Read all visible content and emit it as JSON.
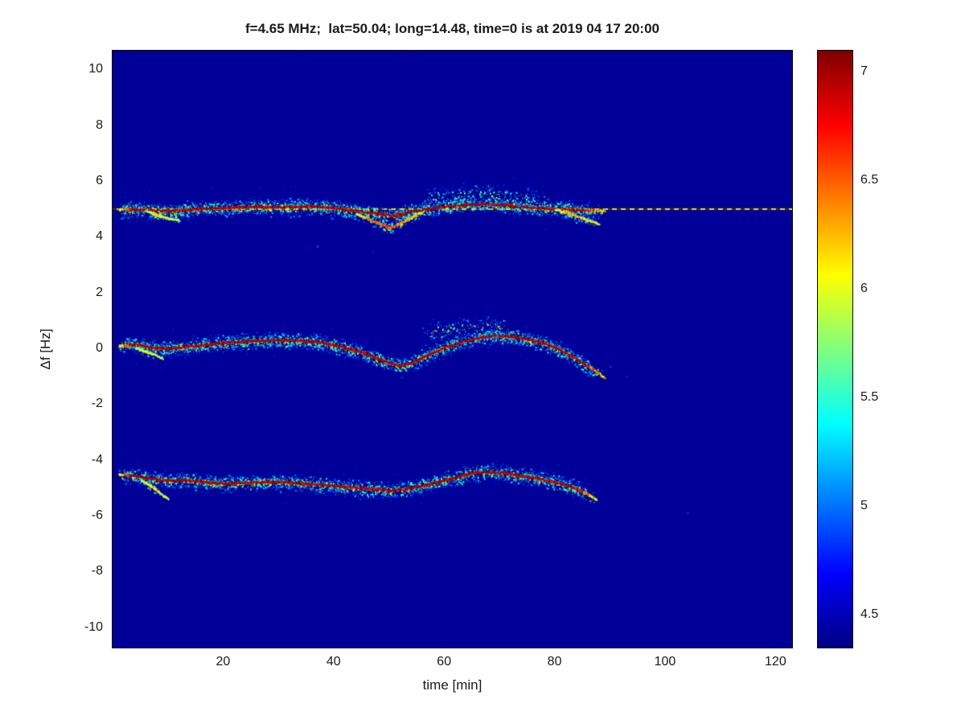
{
  "title": "f=4.65 MHz;  lat=50.04; long=14.48, time=0 is at 2019 04 17 20:00",
  "colors": {
    "page_background": "#ffffff",
    "axis_box": "#0a0a0a",
    "text": "#1a1a1a",
    "plot_background_jet_low": "#000092"
  },
  "chart_data": {
    "type": "heatmap",
    "title": "f=4.65 MHz;  lat=50.04; long=14.48, time=0 is at 2019 04 17 20:00",
    "xlabel": "time [min]",
    "ylabel": "Δf [Hz]",
    "xlim": [
      0,
      123
    ],
    "ylim": [
      -10.7,
      10.7
    ],
    "x_ticks": [
      20,
      40,
      60,
      80,
      100,
      120
    ],
    "y_ticks": [
      10,
      8,
      6,
      4,
      2,
      0,
      -2,
      -4,
      -6,
      -8,
      -10
    ],
    "grid": false,
    "legend": "none",
    "colorbar": {
      "position": "right",
      "colormap": "jet",
      "min": 4.35,
      "max": 7.1,
      "ticks": [
        7,
        6.5,
        6,
        5.5,
        5,
        4.5
      ]
    },
    "background_value": 4.42,
    "reference_line": {
      "description": "thin dashed carrier line spanning full width",
      "y": 5.02,
      "x_start": 0,
      "x_end": 123,
      "value": 6.15
    },
    "traces": [
      {
        "name": "upper-doppler-band",
        "spread": 0.16,
        "density": 4,
        "core": 1,
        "ticks": true,
        "points": [
          [
            1,
            5.0
          ],
          [
            5,
            5.0
          ],
          [
            8,
            4.95
          ],
          [
            12,
            4.98
          ],
          [
            16,
            5.03
          ],
          [
            20,
            5.05
          ],
          [
            25,
            5.1
          ],
          [
            30,
            5.08
          ],
          [
            35,
            5.12
          ],
          [
            40,
            5.06
          ],
          [
            44,
            4.95
          ],
          [
            48,
            4.85
          ],
          [
            51,
            4.78
          ],
          [
            54,
            4.92
          ],
          [
            57,
            5.02
          ],
          [
            60,
            5.1
          ],
          [
            64,
            5.18
          ],
          [
            68,
            5.2
          ],
          [
            72,
            5.14
          ],
          [
            76,
            5.06
          ],
          [
            80,
            5.02
          ],
          [
            84,
            4.98
          ],
          [
            89,
            4.95
          ]
        ]
      },
      {
        "name": "upper-dip-branch",
        "spread": 0.1,
        "density": 2,
        "core": 0.6,
        "ticks": false,
        "points": [
          [
            44,
            4.85
          ],
          [
            46,
            4.68
          ],
          [
            48,
            4.52
          ],
          [
            50,
            4.35
          ],
          [
            52,
            4.5
          ],
          [
            54,
            4.72
          ],
          [
            56,
            4.9
          ]
        ]
      },
      {
        "name": "upper-fading-tail",
        "spread": 0.1,
        "density": 1.6,
        "core": 0.45,
        "ticks": false,
        "points": [
          [
            80,
            5.0
          ],
          [
            82,
            4.9
          ],
          [
            84,
            4.75
          ],
          [
            86,
            4.62
          ],
          [
            88,
            4.48
          ]
        ]
      },
      {
        "name": "upper-early-streak",
        "spread": 0.08,
        "density": 1.2,
        "core": 0.3,
        "ticks": false,
        "points": [
          [
            6,
            4.95
          ],
          [
            8,
            4.8
          ],
          [
            10,
            4.68
          ],
          [
            12,
            4.62
          ]
        ]
      },
      {
        "name": "upper-speckle-cloud",
        "spread": 0.3,
        "density": 1.3,
        "core": 0,
        "ticks": false,
        "points": [
          [
            56,
            5.4
          ],
          [
            62,
            5.5
          ],
          [
            68,
            5.55
          ],
          [
            74,
            5.4
          ],
          [
            79,
            5.3
          ]
        ]
      },
      {
        "name": "middle-doppler-band",
        "spread": 0.16,
        "density": 4,
        "core": 1,
        "ticks": true,
        "points": [
          [
            1,
            0.1
          ],
          [
            4,
            0.18
          ],
          [
            7,
            0.05
          ],
          [
            10,
            0.02
          ],
          [
            14,
            0.1
          ],
          [
            18,
            0.18
          ],
          [
            22,
            0.25
          ],
          [
            26,
            0.3
          ],
          [
            30,
            0.32
          ],
          [
            34,
            0.3
          ],
          [
            38,
            0.22
          ],
          [
            42,
            0.05
          ],
          [
            45,
            -0.12
          ],
          [
            48,
            -0.35
          ],
          [
            50,
            -0.5
          ],
          [
            52,
            -0.62
          ],
          [
            54,
            -0.5
          ],
          [
            56,
            -0.3
          ],
          [
            58,
            -0.12
          ],
          [
            60,
            0.05
          ],
          [
            63,
            0.25
          ],
          [
            66,
            0.4
          ],
          [
            69,
            0.48
          ],
          [
            72,
            0.45
          ],
          [
            75,
            0.35
          ],
          [
            78,
            0.2
          ],
          [
            80,
            0.05
          ],
          [
            82,
            -0.15
          ],
          [
            84,
            -0.38
          ],
          [
            86,
            -0.62
          ],
          [
            88,
            -0.88
          ],
          [
            89,
            -1.05
          ]
        ]
      },
      {
        "name": "middle-early-tail",
        "spread": 0.08,
        "density": 1,
        "core": 0.3,
        "ticks": false,
        "points": [
          [
            4,
            0.05
          ],
          [
            6,
            -0.1
          ],
          [
            8,
            -0.25
          ],
          [
            9,
            -0.35
          ]
        ]
      },
      {
        "name": "middle-speckle-cloud",
        "spread": 0.28,
        "density": 1.1,
        "core": 0,
        "ticks": false,
        "points": [
          [
            56,
            0.55
          ],
          [
            62,
            0.75
          ],
          [
            68,
            0.8
          ],
          [
            73,
            0.7
          ]
        ]
      },
      {
        "name": "lower-doppler-band",
        "spread": 0.16,
        "density": 4,
        "core": 1,
        "ticks": true,
        "points": [
          [
            1,
            -4.5
          ],
          [
            4,
            -4.55
          ],
          [
            7,
            -4.65
          ],
          [
            10,
            -4.72
          ],
          [
            13,
            -4.7
          ],
          [
            16,
            -4.76
          ],
          [
            20,
            -4.82
          ],
          [
            24,
            -4.8
          ],
          [
            28,
            -4.76
          ],
          [
            32,
            -4.78
          ],
          [
            36,
            -4.85
          ],
          [
            40,
            -4.9
          ],
          [
            44,
            -4.97
          ],
          [
            47,
            -5.02
          ],
          [
            50,
            -5.08
          ],
          [
            53,
            -5.02
          ],
          [
            56,
            -4.9
          ],
          [
            59,
            -4.75
          ],
          [
            62,
            -4.6
          ],
          [
            65,
            -4.45
          ],
          [
            68,
            -4.4
          ],
          [
            71,
            -4.45
          ],
          [
            74,
            -4.55
          ],
          [
            77,
            -4.65
          ],
          [
            80,
            -4.78
          ],
          [
            82,
            -4.88
          ],
          [
            84,
            -5.02
          ],
          [
            86,
            -5.22
          ],
          [
            87.5,
            -5.4
          ]
        ]
      },
      {
        "name": "lower-early-branch",
        "spread": 0.08,
        "density": 1.4,
        "core": 0.4,
        "ticks": false,
        "points": [
          [
            5,
            -4.7
          ],
          [
            7,
            -4.92
          ],
          [
            8,
            -5.08
          ],
          [
            9,
            -5.25
          ],
          [
            10,
            -5.38
          ]
        ]
      }
    ],
    "stray_points": [
      [
        37,
        3.7,
        5.0
      ],
      [
        47,
        3.5,
        4.8
      ],
      [
        90,
        -0.6,
        4.9
      ],
      [
        93,
        -0.95,
        4.8
      ],
      [
        104,
        -5.85,
        4.9
      ]
    ],
    "noise": {
      "count": 90,
      "value_min": 4.45,
      "value_max": 4.8
    }
  }
}
